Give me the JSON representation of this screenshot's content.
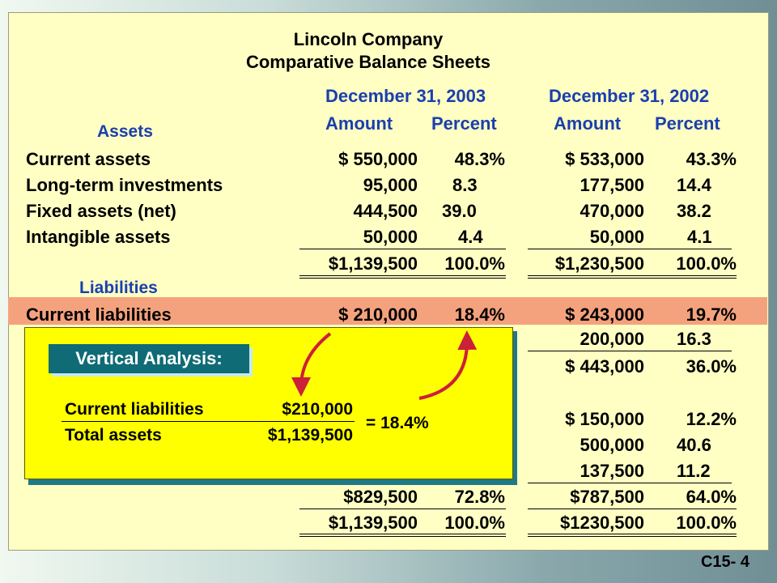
{
  "title": [
    "Lincoln Company",
    "Comparative Balance Sheets"
  ],
  "headers": {
    "col2003": "December 31, 2003",
    "col2002": "December 31, 2002",
    "amount": "Amount",
    "percent": "Percent"
  },
  "assets_label": "Assets",
  "liabilities_label": "Liabilities",
  "assets": [
    {
      "label": "Current assets",
      "a03": "$  550,000",
      "p03": "48.3%",
      "a02": "$  533,000",
      "p02": "43.3%"
    },
    {
      "label": "Long-term investments",
      "a03": "95,000",
      "p03": "8.3",
      "a02": "177,500",
      "p02": "14.4"
    },
    {
      "label": "Fixed assets (net)",
      "a03": "444,500",
      "p03": "39.0",
      "a02": "470,000",
      "p02": "38.2"
    },
    {
      "label": "Intangible assets",
      "a03": "50,000",
      "p03": "4.4",
      "a02": "50,000",
      "p02": "4.1"
    }
  ],
  "assets_total": {
    "a03": "$1,139,500",
    "p03": "100.0%",
    "a02": "$1,230,500",
    "p02": "100.0%"
  },
  "current_liabilities": {
    "label": "Current liabilities",
    "a03": "$  210,000",
    "p03": "18.4%",
    "a02": "$ 243,000",
    "p02": "19.7%"
  },
  "right_rows": [
    {
      "a02": "200,000",
      "p02": "16.3"
    },
    {
      "a02": "$ 443,000",
      "p02": "36.0%"
    },
    {
      "a02": "$ 150,000",
      "p02": "12.2%"
    },
    {
      "a02": "500,000",
      "p02": "40.6"
    },
    {
      "a02": "137,500",
      "p02": "11.2"
    }
  ],
  "equity_total": {
    "a03": "$829,500",
    "p03": "72.8%",
    "a02": "$787,500",
    "p02": "64.0%"
  },
  "grand_total": {
    "a03": "$1,139,500",
    "p03": "100.0%",
    "a02": "$1230,500",
    "p02": "100.0%"
  },
  "popup": {
    "heading": "Vertical Analysis:",
    "numerator_label": "Current liabilities",
    "numerator_value": "$210,000",
    "denominator_label": "Total assets",
    "denominator_value": "$1,139,500",
    "result": "=  18.4%"
  },
  "footer": "C15- 4",
  "colors": {
    "highlight": "#f4a27d",
    "header_blue": "#1a3fae",
    "popup_bg": "#ffff00",
    "arrow": "#cc1f3a"
  }
}
